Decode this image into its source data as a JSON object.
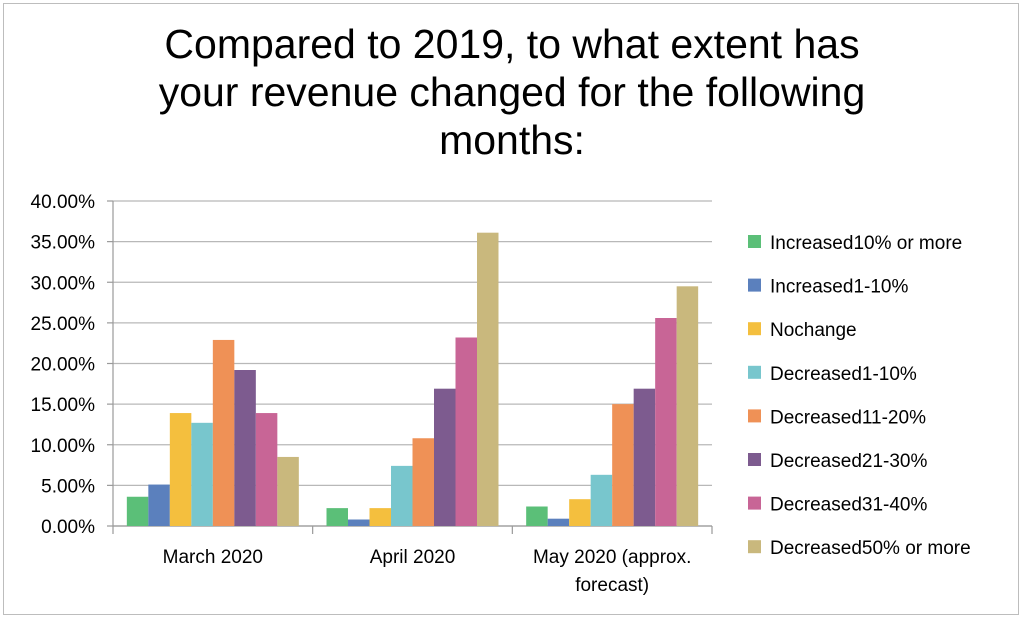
{
  "chart_data": {
    "type": "bar",
    "title_lines": [
      "Compared to 2019, to what extent has",
      "your revenue changed for the following",
      "months:"
    ],
    "categories": [
      [
        "March 2020"
      ],
      [
        "April 2020"
      ],
      [
        "May 2020 (approx.",
        "forecast)"
      ]
    ],
    "y_ticks": [
      "0.00%",
      "5.00%",
      "10.00%",
      "15.00%",
      "20.00%",
      "25.00%",
      "30.00%",
      "35.00%",
      "40.00%"
    ],
    "ylim": [
      0,
      40
    ],
    "grid": true,
    "legend_position": "right",
    "series": [
      {
        "name": "Increased10% or more",
        "color": "#5bbf78",
        "values": [
          3.6,
          2.2,
          2.4
        ]
      },
      {
        "name": "Increased1-10%",
        "color": "#5b80bd",
        "values": [
          5.1,
          0.8,
          0.9
        ]
      },
      {
        "name": "Nochange",
        "color": "#f4bf3e",
        "values": [
          13.9,
          2.2,
          3.3
        ]
      },
      {
        "name": "Decreased1-10%",
        "color": "#78c6cd",
        "values": [
          12.7,
          7.4,
          6.3
        ]
      },
      {
        "name": "Decreased11-20%",
        "color": "#ef9156",
        "values": [
          22.9,
          10.8,
          15.0
        ]
      },
      {
        "name": "Decreased21-30%",
        "color": "#7d5b8f",
        "values": [
          19.2,
          16.9,
          16.9
        ]
      },
      {
        "name": "Decreased31-40%",
        "color": "#c86596",
        "values": [
          13.9,
          23.2,
          25.6
        ]
      },
      {
        "name": "Decreased50% or more",
        "color": "#c9b87d",
        "values": [
          8.5,
          36.1,
          29.5
        ]
      }
    ]
  }
}
